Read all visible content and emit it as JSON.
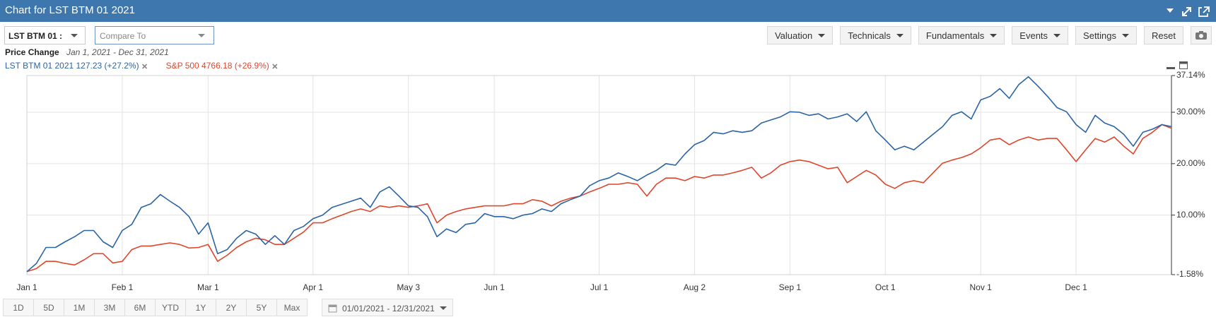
{
  "window": {
    "title": "Chart for LST BTM 01 2021"
  },
  "toolbar": {
    "symbol": "LST BTM 01 :",
    "compare_placeholder": "Compare To",
    "menus": [
      "Valuation",
      "Technicals",
      "Fundamentals",
      "Events",
      "Settings"
    ],
    "reset": "Reset"
  },
  "chart_data": {
    "type": "line",
    "title": "Price Change",
    "subtitle": "Jan 1, 2021 - Dec 31, 2021",
    "categories": [
      "Jan 1",
      null,
      null,
      null,
      null,
      null,
      null,
      null,
      null,
      null,
      "Feb 1",
      null,
      null,
      null,
      null,
      null,
      null,
      null,
      null,
      "Mar 1",
      null,
      null,
      null,
      null,
      null,
      null,
      null,
      null,
      null,
      null,
      "Apr 1",
      null,
      null,
      null,
      null,
      null,
      null,
      null,
      null,
      null,
      "May 3",
      null,
      null,
      null,
      null,
      null,
      null,
      null,
      null,
      "Jun 1",
      null,
      null,
      null,
      null,
      null,
      null,
      null,
      null,
      null,
      null,
      "Jul 1",
      null,
      null,
      null,
      null,
      null,
      null,
      null,
      null,
      null,
      "Aug 2",
      null,
      null,
      null,
      null,
      null,
      null,
      null,
      null,
      null,
      "Sep 1",
      null,
      null,
      null,
      null,
      null,
      null,
      null,
      null,
      null,
      "Oct 1",
      null,
      null,
      null,
      null,
      null,
      null,
      null,
      null,
      null,
      "Nov 1",
      null,
      null,
      null,
      null,
      null,
      null,
      null,
      null,
      null,
      "Dec 1",
      null,
      null,
      null,
      null,
      null,
      null,
      null,
      null,
      null,
      null
    ],
    "series": [
      {
        "name": "LST BTM 01 2021 127.23 (+27.2%)",
        "color": "#2a64a4",
        "values": [
          -1.0,
          0.6,
          3.7,
          3.7,
          4.8,
          5.8,
          7.0,
          7.0,
          4.8,
          3.7,
          7.0,
          8.2,
          11.5,
          12.2,
          14.0,
          12.7,
          11.5,
          9.7,
          6.3,
          8.5,
          2.5,
          3.3,
          5.5,
          7.0,
          6.3,
          4.3,
          6.0,
          4.3,
          7.0,
          7.8,
          9.3,
          10.0,
          11.5,
          12.1,
          12.7,
          13.3,
          11.5,
          14.5,
          15.5,
          13.7,
          11.8,
          11.5,
          9.7,
          5.8,
          7.3,
          6.6,
          8.2,
          8.5,
          10.3,
          9.7,
          9.7,
          9.3,
          10.0,
          10.3,
          11.2,
          10.7,
          12.2,
          13.0,
          13.7,
          15.7,
          16.7,
          17.2,
          18.2,
          17.5,
          16.7,
          17.8,
          18.7,
          20.0,
          19.7,
          21.9,
          23.7,
          24.5,
          26.1,
          25.8,
          26.4,
          26.1,
          26.4,
          27.9,
          28.5,
          29.1,
          30.1,
          30.0,
          29.4,
          29.7,
          28.7,
          29.1,
          29.7,
          28.2,
          30.1,
          26.4,
          24.6,
          22.7,
          23.4,
          22.7,
          24.2,
          25.7,
          27.2,
          29.4,
          30.1,
          28.7,
          32.4,
          33.1,
          34.6,
          32.7,
          35.4,
          36.9,
          35.1,
          33.1,
          30.9,
          30.1,
          27.6,
          26.1,
          29.4,
          27.9,
          27.2,
          25.7,
          23.4,
          26.1,
          26.7,
          27.6,
          27.2
        ]
      },
      {
        "name": "S&P 500 4766.18 (+26.9%)",
        "color": "#e0462c",
        "values": [
          -1.0,
          -0.4,
          1.0,
          1.0,
          0.6,
          0.3,
          1.3,
          2.5,
          2.5,
          0.7,
          1.0,
          3.3,
          4.0,
          4.0,
          4.3,
          4.6,
          4.3,
          3.6,
          3.7,
          4.3,
          1.0,
          2.2,
          3.7,
          4.8,
          5.5,
          5.2,
          4.3,
          4.3,
          5.5,
          6.7,
          8.5,
          8.5,
          9.3,
          10.0,
          10.7,
          11.2,
          10.7,
          11.8,
          11.5,
          11.8,
          11.5,
          11.8,
          12.2,
          8.5,
          10.0,
          10.7,
          11.2,
          11.5,
          11.8,
          11.8,
          11.8,
          12.2,
          12.2,
          13.0,
          12.7,
          11.8,
          12.7,
          13.3,
          13.7,
          14.5,
          15.2,
          16.0,
          16.0,
          16.3,
          16.0,
          13.7,
          16.0,
          17.2,
          17.2,
          16.7,
          17.5,
          17.2,
          17.8,
          17.8,
          18.2,
          18.7,
          19.3,
          17.2,
          18.2,
          19.7,
          20.4,
          20.7,
          20.4,
          19.7,
          19.0,
          19.3,
          16.3,
          17.5,
          18.7,
          17.8,
          16.0,
          15.2,
          16.3,
          16.7,
          16.3,
          18.2,
          20.1,
          20.7,
          21.2,
          21.9,
          23.1,
          24.6,
          24.9,
          23.7,
          24.6,
          25.2,
          24.6,
          24.9,
          24.9,
          22.7,
          20.4,
          22.7,
          24.9,
          24.2,
          25.2,
          23.4,
          21.9,
          24.9,
          26.1,
          27.6,
          26.9
        ]
      }
    ],
    "ylim": [
      -1.58,
      37.14
    ],
    "yticks": [
      {
        "value": -1.58,
        "label": "-1.58%"
      },
      {
        "value": 10,
        "label": "10.00%"
      },
      {
        "value": 20,
        "label": "20.00%"
      },
      {
        "value": 30,
        "label": "30.00%"
      },
      {
        "value": 37.14,
        "label": "37.14%"
      }
    ],
    "grid": true
  },
  "range_buttons": [
    "1D",
    "5D",
    "1M",
    "3M",
    "6M",
    "YTD",
    "1Y",
    "2Y",
    "5Y",
    "Max"
  ],
  "date_range": "01/01/2021 - 12/31/2021"
}
